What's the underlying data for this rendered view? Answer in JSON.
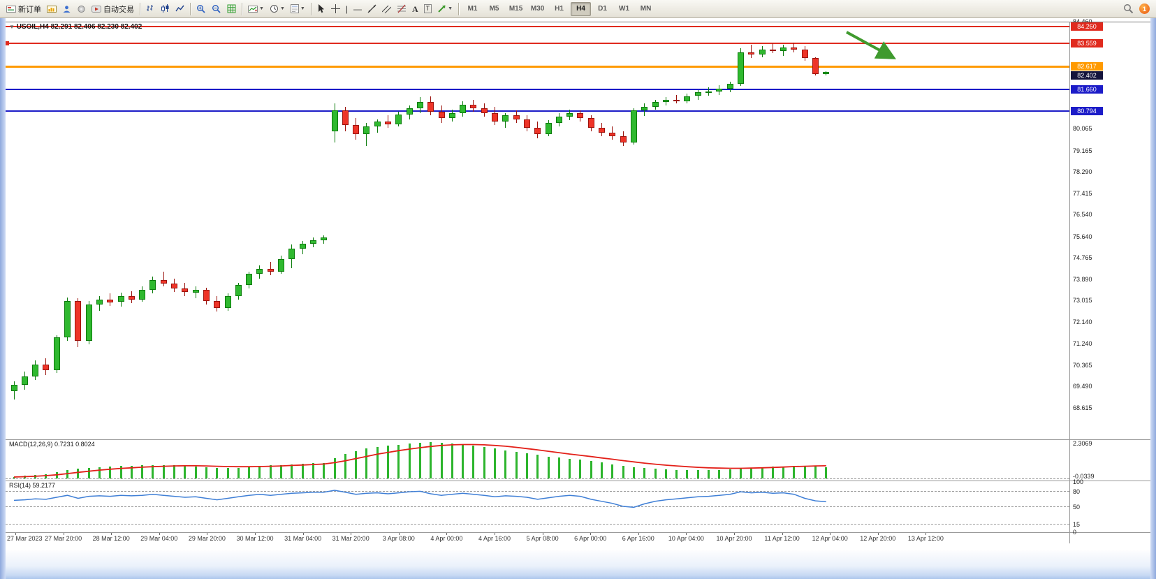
{
  "toolbar": {
    "new_order_label": "新订单",
    "auto_trading_label": "自动交易",
    "timeframes": [
      "M1",
      "M5",
      "M15",
      "M30",
      "H1",
      "H4",
      "D1",
      "W1",
      "MN"
    ],
    "active_timeframe": "H4",
    "notification_count": "1"
  },
  "chart": {
    "title_symbol": "USOIL,H4",
    "title_ohlc": "82.291 82.406 82.230 82.402"
  },
  "chart_data": {
    "type": "candlestick",
    "symbol": "USOIL",
    "period": "H4",
    "current_bar": {
      "open": 82.291,
      "high": 82.406,
      "low": 82.23,
      "close": 82.402
    },
    "colors": {
      "up": "#2fb92f",
      "up_border": "#0c7c0c",
      "down": "#ee3428",
      "down_border": "#9c140e",
      "level_red": "#e02a1e",
      "level_orange": "#ff9a00",
      "level_blue": "#1c1cc8",
      "current_price_bg": "#14143c",
      "arrow": "#3f9a2e"
    },
    "y_axis_labels": [
      {
        "text": "84.460",
        "price": 84.46
      },
      {
        "text": "80.065",
        "price": 80.065
      },
      {
        "text": "79.165",
        "price": 79.165
      },
      {
        "text": "78.290",
        "price": 78.29
      },
      {
        "text": "77.415",
        "price": 77.415
      },
      {
        "text": "76.540",
        "price": 76.54
      },
      {
        "text": "75.640",
        "price": 75.64
      },
      {
        "text": "74.765",
        "price": 74.765
      },
      {
        "text": "73.890",
        "price": 73.89
      },
      {
        "text": "73.015",
        "price": 73.015
      },
      {
        "text": "72.140",
        "price": 72.14
      },
      {
        "text": "71.240",
        "price": 71.24
      },
      {
        "text": "70.365",
        "price": 70.365
      },
      {
        "text": "69.490",
        "price": 69.49
      },
      {
        "text": "68.615",
        "price": 68.615
      }
    ],
    "levels": [
      {
        "price": 84.26,
        "label": "84.260",
        "color": "#e02a1e",
        "width": 2
      },
      {
        "price": 83.559,
        "label": "83.559",
        "color": "#e02a1e",
        "width": 2
      },
      {
        "price": 82.617,
        "label": "82.617",
        "color": "#ff9a00",
        "width": 3
      },
      {
        "price": 81.66,
        "label": "81.660",
        "color": "#1c1cc8",
        "width": 2
      },
      {
        "price": 80.794,
        "label": "80.794",
        "color": "#1c1cc8",
        "width": 2
      }
    ],
    "current_price": {
      "price": 82.402,
      "label": "82.402"
    },
    "x_labels": [
      "27 Mar 2023",
      "27 Mar 20:00",
      "28 Mar 12:00",
      "29 Mar 04:00",
      "29 Mar 20:00",
      "30 Mar 12:00",
      "31 Mar 04:00",
      "31 Mar 20:00",
      "3 Apr 08:00",
      "4 Apr 00:00",
      "4 Apr 16:00",
      "5 Apr 08:00",
      "6 Apr 00:00",
      "6 Apr 16:00",
      "10 Apr 04:00",
      "10 Apr 20:00",
      "11 Apr 12:00",
      "12 Apr 04:00",
      "12 Apr 20:00",
      "13 Apr 12:00"
    ],
    "candles": [
      [
        69.3,
        69.7,
        68.95,
        69.55
      ],
      [
        69.55,
        70.1,
        69.35,
        69.9
      ],
      [
        69.9,
        70.55,
        69.75,
        70.4
      ],
      [
        70.4,
        70.65,
        69.95,
        70.15
      ],
      [
        70.15,
        71.6,
        70.05,
        71.5
      ],
      [
        71.5,
        73.15,
        71.35,
        73.0
      ],
      [
        73.0,
        73.1,
        71.1,
        71.35
      ],
      [
        71.35,
        73.0,
        71.2,
        72.85
      ],
      [
        72.85,
        73.2,
        72.6,
        73.05
      ],
      [
        73.05,
        73.3,
        72.8,
        72.95
      ],
      [
        72.95,
        73.35,
        72.75,
        73.2
      ],
      [
        73.2,
        73.4,
        72.9,
        73.05
      ],
      [
        73.05,
        73.6,
        72.95,
        73.45
      ],
      [
        73.45,
        74.0,
        73.3,
        73.85
      ],
      [
        73.85,
        74.2,
        73.6,
        73.7
      ],
      [
        73.7,
        73.9,
        73.35,
        73.5
      ],
      [
        73.5,
        73.75,
        73.2,
        73.35
      ],
      [
        73.35,
        73.6,
        73.1,
        73.45
      ],
      [
        73.45,
        73.55,
        72.85,
        73.0
      ],
      [
        73.0,
        73.2,
        72.55,
        72.7
      ],
      [
        72.7,
        73.3,
        72.6,
        73.2
      ],
      [
        73.2,
        73.75,
        73.05,
        73.65
      ],
      [
        73.65,
        74.2,
        73.5,
        74.1
      ],
      [
        74.1,
        74.45,
        73.9,
        74.3
      ],
      [
        74.3,
        74.6,
        74.05,
        74.2
      ],
      [
        74.2,
        74.85,
        74.1,
        74.7
      ],
      [
        74.7,
        75.3,
        74.35,
        75.15
      ],
      [
        75.15,
        75.45,
        74.9,
        75.35
      ],
      [
        75.35,
        75.6,
        75.2,
        75.5
      ],
      [
        75.5,
        75.7,
        75.35,
        75.6
      ],
      [
        79.95,
        81.1,
        79.5,
        80.8
      ],
      [
        80.8,
        80.95,
        79.95,
        80.2
      ],
      [
        80.2,
        80.5,
        79.6,
        79.85
      ],
      [
        79.85,
        80.3,
        79.35,
        80.15
      ],
      [
        80.15,
        80.45,
        79.9,
        80.35
      ],
      [
        80.35,
        80.6,
        80.1,
        80.25
      ],
      [
        80.25,
        80.75,
        80.15,
        80.65
      ],
      [
        80.65,
        81.0,
        80.45,
        80.9
      ],
      [
        80.9,
        81.35,
        80.7,
        81.15
      ],
      [
        81.15,
        81.4,
        80.6,
        80.75
      ],
      [
        80.75,
        81.0,
        80.3,
        80.5
      ],
      [
        80.5,
        80.85,
        80.35,
        80.7
      ],
      [
        80.7,
        81.2,
        80.55,
        81.05
      ],
      [
        81.05,
        81.25,
        80.75,
        80.9
      ],
      [
        80.9,
        81.1,
        80.55,
        80.7
      ],
      [
        80.7,
        80.95,
        80.2,
        80.35
      ],
      [
        80.35,
        80.7,
        80.1,
        80.6
      ],
      [
        80.6,
        80.8,
        80.3,
        80.45
      ],
      [
        80.45,
        80.6,
        79.95,
        80.1
      ],
      [
        80.1,
        80.35,
        79.65,
        79.85
      ],
      [
        79.85,
        80.4,
        79.75,
        80.3
      ],
      [
        80.3,
        80.7,
        80.15,
        80.55
      ],
      [
        80.55,
        80.85,
        80.4,
        80.7
      ],
      [
        80.7,
        80.8,
        80.35,
        80.5
      ],
      [
        80.5,
        80.6,
        79.95,
        80.1
      ],
      [
        80.1,
        80.3,
        79.75,
        79.9
      ],
      [
        79.9,
        80.15,
        79.6,
        79.75
      ],
      [
        79.75,
        79.95,
        79.35,
        79.5
      ],
      [
        79.5,
        80.9,
        79.4,
        80.8
      ],
      [
        80.8,
        81.1,
        80.6,
        80.95
      ],
      [
        80.95,
        81.25,
        80.85,
        81.15
      ],
      [
        81.15,
        81.35,
        81.0,
        81.25
      ],
      [
        81.25,
        81.45,
        81.1,
        81.2
      ],
      [
        81.2,
        81.5,
        81.1,
        81.4
      ],
      [
        81.4,
        81.65,
        81.25,
        81.55
      ],
      [
        81.55,
        81.75,
        81.4,
        81.6
      ],
      [
        81.6,
        81.85,
        81.45,
        81.7
      ],
      [
        81.7,
        82.0,
        81.55,
        81.9
      ],
      [
        81.9,
        83.35,
        81.8,
        83.2
      ],
      [
        83.2,
        83.5,
        82.95,
        83.1
      ],
      [
        83.1,
        83.45,
        83.0,
        83.3
      ],
      [
        83.3,
        83.55,
        83.15,
        83.25
      ],
      [
        83.25,
        83.5,
        83.05,
        83.4
      ],
      [
        83.4,
        83.6,
        83.2,
        83.3
      ],
      [
        83.3,
        83.45,
        82.85,
        82.95
      ],
      [
        82.95,
        83.0,
        82.25,
        82.3
      ],
      [
        82.291,
        82.406,
        82.23,
        82.402
      ]
    ],
    "indicators": {
      "macd": {
        "name": "MACD(12,26,9)",
        "values": "0.7231 0.8024",
        "scale_max": "2.3069",
        "scale_min": "-0.0339",
        "hist_color": "#2db52d",
        "signal_color": "#e32019",
        "histogram": [
          0.1,
          0.15,
          0.22,
          0.28,
          0.38,
          0.52,
          0.6,
          0.66,
          0.72,
          0.76,
          0.78,
          0.8,
          0.82,
          0.85,
          0.86,
          0.84,
          0.8,
          0.76,
          0.72,
          0.68,
          0.66,
          0.68,
          0.72,
          0.78,
          0.82,
          0.86,
          0.9,
          0.94,
          0.96,
          0.98,
          1.3,
          1.55,
          1.75,
          1.9,
          2.0,
          2.08,
          2.15,
          2.22,
          2.28,
          2.3,
          2.28,
          2.24,
          2.18,
          2.1,
          2.0,
          1.9,
          1.8,
          1.7,
          1.6,
          1.5,
          1.4,
          1.32,
          1.26,
          1.2,
          1.1,
          1.0,
          0.9,
          0.8,
          0.72,
          0.66,
          0.62,
          0.58,
          0.55,
          0.53,
          0.52,
          0.52,
          0.54,
          0.56,
          0.62,
          0.68,
          0.72,
          0.74,
          0.76,
          0.78,
          0.76,
          0.74,
          0.72
        ],
        "signal": [
          0.08,
          0.1,
          0.13,
          0.17,
          0.22,
          0.3,
          0.38,
          0.45,
          0.52,
          0.58,
          0.63,
          0.67,
          0.71,
          0.74,
          0.77,
          0.79,
          0.8,
          0.8,
          0.79,
          0.77,
          0.75,
          0.74,
          0.74,
          0.75,
          0.77,
          0.79,
          0.82,
          0.85,
          0.88,
          0.91,
          1.0,
          1.12,
          1.26,
          1.4,
          1.54,
          1.66,
          1.77,
          1.87,
          1.96,
          2.04,
          2.1,
          2.14,
          2.16,
          2.16,
          2.14,
          2.1,
          2.05,
          1.98,
          1.9,
          1.82,
          1.73,
          1.64,
          1.55,
          1.47,
          1.39,
          1.3,
          1.22,
          1.13,
          1.05,
          0.97,
          0.9,
          0.84,
          0.79,
          0.74,
          0.7,
          0.67,
          0.65,
          0.64,
          0.64,
          0.65,
          0.67,
          0.69,
          0.72,
          0.75,
          0.77,
          0.79,
          0.8
        ]
      },
      "rsi": {
        "name": "RSI(14)",
        "value": "59.2177",
        "line_color": "#3f7fd6",
        "scale": [
          "100",
          "80",
          "50",
          "15",
          "0"
        ],
        "levels": [
          80,
          50,
          15
        ],
        "values": [
          62,
          63,
          65,
          64,
          68,
          72,
          66,
          70,
          71,
          70,
          72,
          71,
          72,
          74,
          72,
          70,
          68,
          69,
          66,
          63,
          66,
          69,
          72,
          74,
          72,
          74,
          76,
          77,
          78,
          78,
          82,
          78,
          74,
          76,
          77,
          75,
          77,
          79,
          80,
          75,
          72,
          74,
          76,
          74,
          72,
          69,
          71,
          70,
          68,
          64,
          67,
          70,
          72,
          70,
          64,
          60,
          56,
          50,
          48,
          55,
          60,
          63,
          65,
          67,
          69,
          70,
          72,
          74,
          79,
          77,
          78,
          76,
          77,
          74,
          66,
          61,
          59.2
        ]
      }
    }
  }
}
